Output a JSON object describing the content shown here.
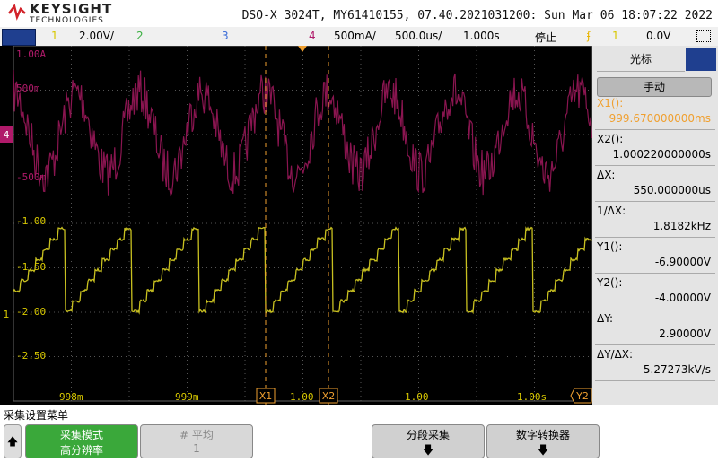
{
  "header": {
    "brand": "KEYSIGHT",
    "brand_sub": "TECHNOLOGIES",
    "title": "DSO-X 3024T, MY61410155, 07.40.2021031200: Sun Mar 06 18:07:22 2022"
  },
  "status_bar": {
    "ch1": "1",
    "ch1_scale": "2.00V/",
    "ch2": "2",
    "ch3": "3",
    "ch4": "4",
    "ch4_scale": "500mA/",
    "timebase": "500.0us/",
    "delay": "1.000s",
    "run_state": "停止",
    "trigger_source": "1",
    "trigger_level": "0.0V"
  },
  "graticule": {
    "y_labels": [
      "1.00A",
      "500m",
      "-500m",
      "-1.00",
      "-1.50",
      "-2.00",
      "-2.50"
    ],
    "x_labels": [
      "998m",
      "999m",
      "1.00",
      "1.00",
      "1.00s"
    ],
    "ch4_marker": "4",
    "ch1_marker": "1",
    "cursor_x1": "X1",
    "cursor_x2": "X2",
    "cursor_y2": "Y2"
  },
  "cursor_panel": {
    "tab": "光标",
    "mode": "手动",
    "readouts": [
      {
        "label": "X1():",
        "value": "999.670000000ms"
      },
      {
        "label": "X2():",
        "value": "1.000220000000s"
      },
      {
        "label": "ΔX:",
        "value": "550.000000us"
      },
      {
        "label": "1/ΔX:",
        "value": "1.8182kHz"
      },
      {
        "label": "Y1():",
        "value": "-6.90000V"
      },
      {
        "label": "Y2():",
        "value": "-4.00000V"
      },
      {
        "label": "ΔY:",
        "value": "2.90000V"
      },
      {
        "label": "ΔY/ΔX:",
        "value": "5.27273kV/s"
      }
    ]
  },
  "menu": {
    "title": "采集设置菜单",
    "buttons": [
      {
        "label": "采集模式",
        "value": "高分辨率"
      },
      {
        "label": "# 平均",
        "value": "1"
      },
      {
        "label": "分段采集"
      },
      {
        "label": "数字转换器"
      }
    ]
  }
}
